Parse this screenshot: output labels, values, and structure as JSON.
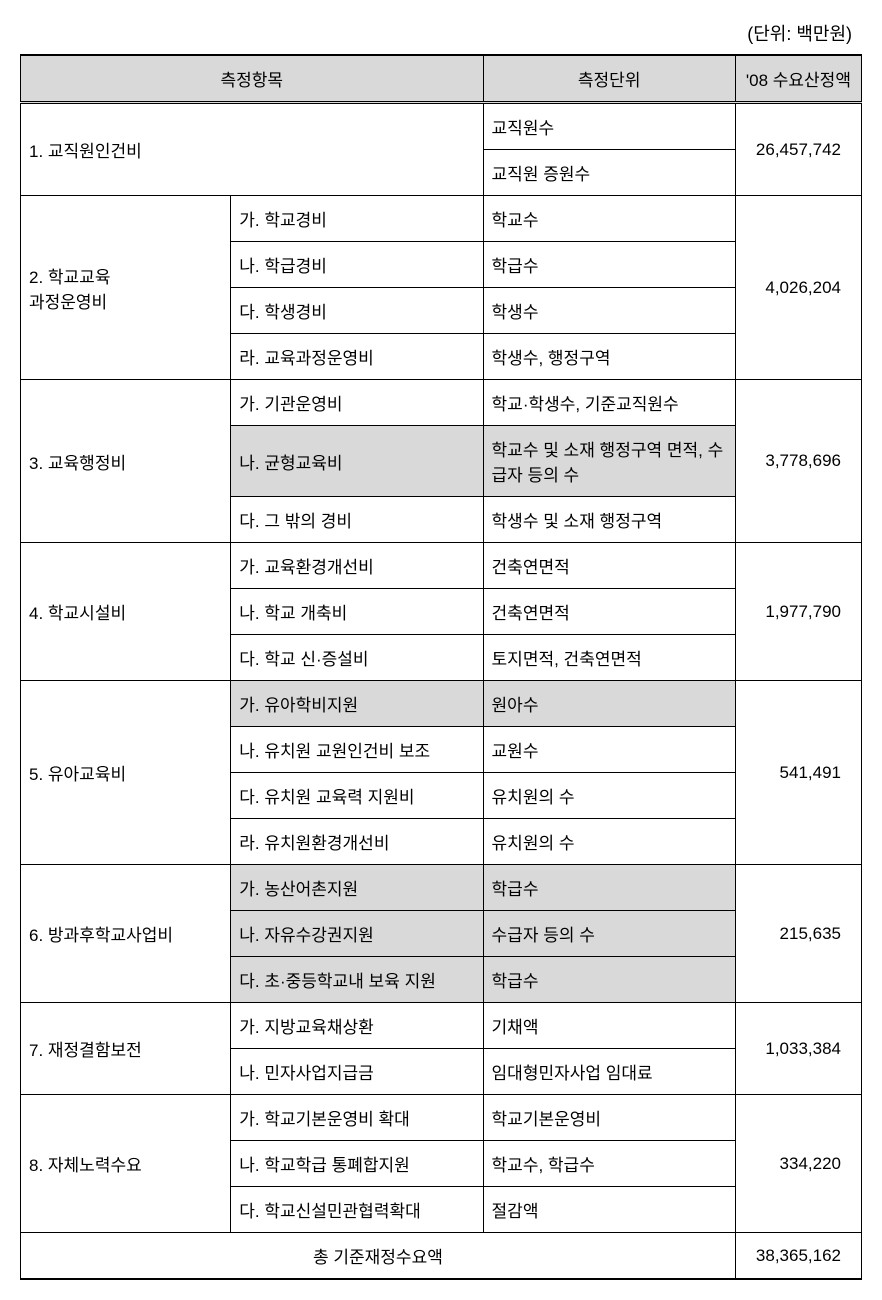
{
  "unit_label": "(단위: 백만원)",
  "headers": {
    "item": "측정항목",
    "unit": "측정단위",
    "amount": "'08 수요산정액"
  },
  "rows": {
    "r1": {
      "label": "1. 교직원인건비",
      "unit_a": "교직원수",
      "unit_b": "교직원 증원수",
      "amount": "26,457,742"
    },
    "r2": {
      "label_a": "2. 학교교육",
      "label_b": "과정운영비",
      "sub_a": "가. 학교경비",
      "unit_a": "학교수",
      "sub_b": "나. 학급경비",
      "unit_b": "학급수",
      "sub_c": "다. 학생경비",
      "unit_c": "학생수",
      "sub_d": "라. 교육과정운영비",
      "unit_d": "학생수, 행정구역",
      "amount": "4,026,204"
    },
    "r3": {
      "label": "3. 교육행정비",
      "sub_a": "가. 기관운영비",
      "unit_a": " 학교·학생수,   기준교직원수",
      "sub_b": "나. 균형교육비",
      "unit_b": " 학교수 및 소재 행정구역 면적, 수급자 등의 수",
      "sub_c": "다. 그 밖의 경비",
      "unit_c": " 학생수 및 소재 행정구역",
      "amount": "3,778,696"
    },
    "r4": {
      "label": "4. 학교시설비",
      "sub_a": "가. 교육환경개선비",
      "unit_a": "건축연면적",
      "sub_b": "나. 학교 개축비",
      "unit_b": "건축연면적",
      "sub_c": "다. 학교 신·증설비",
      "unit_c": "토지면적, 건축연면적",
      "amount": "1,977,790"
    },
    "r5": {
      "label": "5. 유아교육비",
      "sub_a": "가. 유아학비지원",
      "unit_a": "원아수",
      "sub_b": "나. 유치원 교원인건비 보조",
      "unit_b": "교원수",
      "sub_c": "다. 유치원 교육력 지원비",
      "unit_c": "유치원의 수",
      "sub_d": "라. 유치원환경개선비",
      "unit_d": "유치원의 수",
      "amount": "541,491"
    },
    "r6": {
      "label": "6. 방과후학교사업비",
      "sub_a": "가. 농산어촌지원",
      "unit_a": "학급수",
      "sub_b": "나. 자유수강권지원",
      "unit_b": "수급자 등의 수",
      "sub_c": "다. 초·중등학교내 보육 지원",
      "unit_c": "학급수",
      "amount": "215,635"
    },
    "r7": {
      "label": "7. 재정결함보전",
      "sub_a": "가. 지방교육채상환",
      "unit_a": "기채액",
      "sub_b": "나. 민자사업지급금",
      "unit_b": "임대형민자사업 임대료",
      "amount": "1,033,384"
    },
    "r8": {
      "label": "8. 자체노력수요",
      "sub_a": "가. 학교기본운영비 확대",
      "unit_a": "학교기본운영비",
      "sub_b": "나. 학교학급 통폐합지원",
      "unit_b": "학교수, 학급수",
      "sub_c": "다. 학교신설민관협력확대",
      "unit_c": "절감액",
      "amount": "334,220"
    },
    "total": {
      "label": "총 기준재정수요액",
      "amount": "38,365,162"
    }
  }
}
